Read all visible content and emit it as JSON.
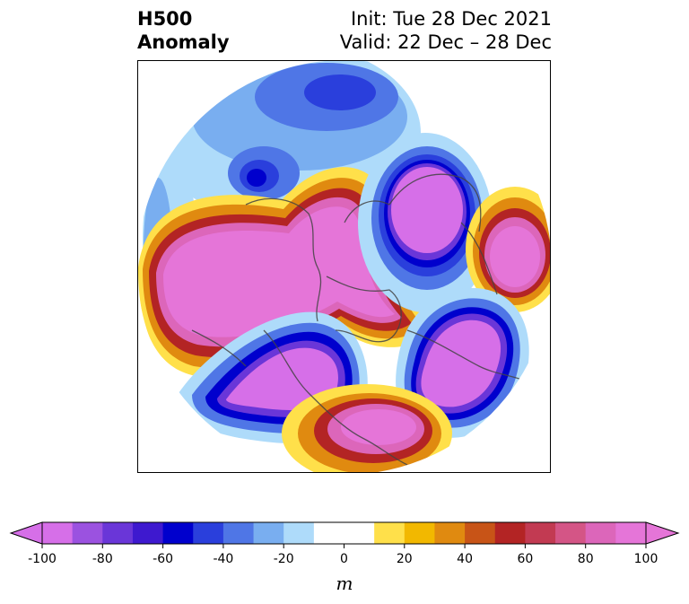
{
  "title": {
    "left_line1": "H500",
    "left_line2": "Anomaly",
    "right_line1": "Init: Tue 28 Dec 2021",
    "right_line2": "Valid: 22 Dec – 28 Dec"
  },
  "map": {
    "projection": "north-polar-stereographic",
    "field": "500 hPa geopotential height anomaly"
  },
  "colorbar": {
    "unit": "m",
    "min": -100,
    "max": 100,
    "extend": "both",
    "tick_labels": [
      "-100",
      "-80",
      "-60",
      "-40",
      "-20",
      "0",
      "20",
      "40",
      "60",
      "80",
      "100"
    ],
    "colors": [
      "#d66fe8",
      "#9b52e0",
      "#6a36d8",
      "#3e19cf",
      "#0000cd",
      "#2a3fdc",
      "#4f76e6",
      "#79aef0",
      "#aedbfa",
      "#ffffff",
      "#ffffff",
      "#ffe04a",
      "#f2b800",
      "#e08a10",
      "#c85417",
      "#b32424",
      "#c23a52",
      "#d45586",
      "#dc66ba",
      "#e575d8"
    ]
  }
}
